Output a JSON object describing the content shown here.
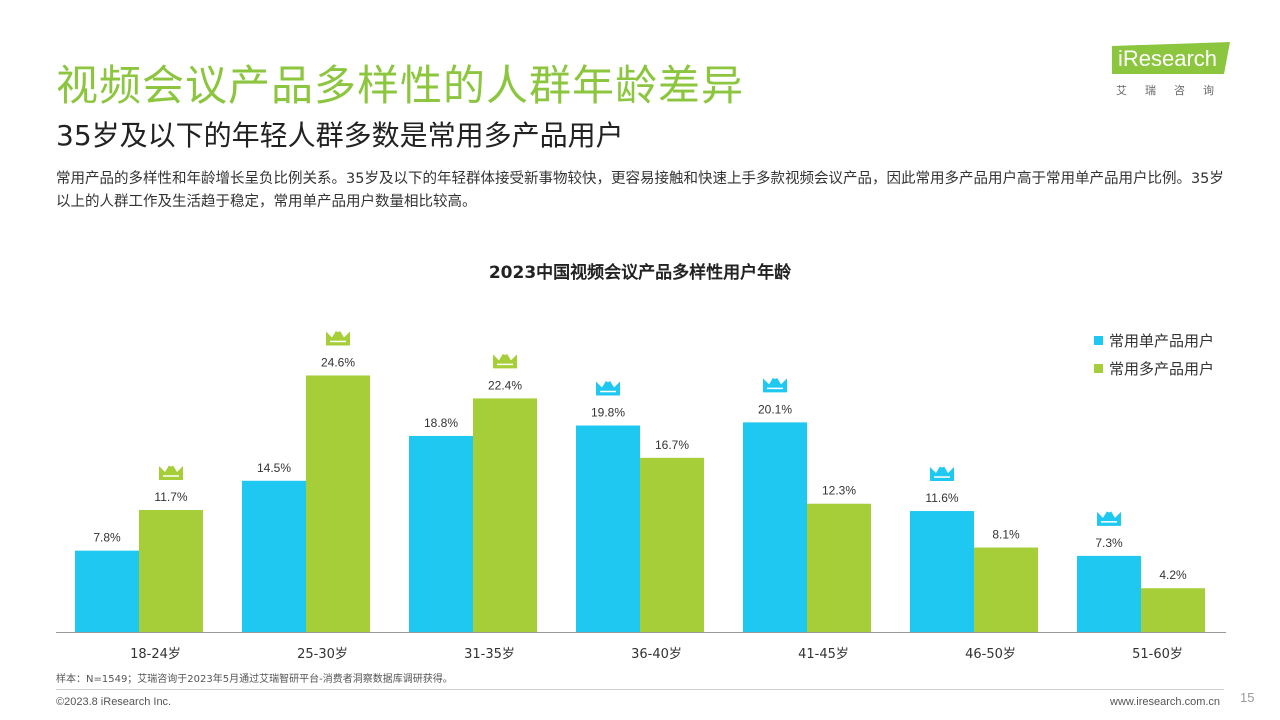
{
  "slide": {
    "title": "视频会议产品多样性的人群年龄差异",
    "subtitle": "35岁及以下的年轻人群多数是常用多产品用户",
    "description": "常用产品的多样性和年龄增长呈负比例关系。35岁及以下的年轻群体接受新事物较快，更容易接触和快速上手多款视频会议产品，因此常用多产品用户高于常用单产品用户比例。35岁以上的人群工作及生活趋于稳定，常用单产品用户数量相比较高。",
    "source": "样本：N=1549；艾瑞咨询于2023年5月通过艾瑞智研平台-消费者洞察数据库调研获得。",
    "copyright": "©2023.8 iResearch Inc.",
    "website": "www.iresearch.com.cn",
    "page_number": "15"
  },
  "logo": {
    "text": "iResearch",
    "subtext": "艾瑞咨询",
    "color": "#8cc63f"
  },
  "colors": {
    "single": "#1ec8f0",
    "multi": "#a6ce39",
    "title": "#8cc63f"
  },
  "chart_data": {
    "type": "bar",
    "title": "2023中国视频会议产品多样性用户年龄",
    "categories": [
      "18-24岁",
      "25-30岁",
      "31-35岁",
      "36-40岁",
      "41-45岁",
      "46-50岁",
      "51-60岁"
    ],
    "series": [
      {
        "name": "常用单产品用户",
        "values": [
          7.8,
          14.5,
          18.8,
          19.8,
          20.1,
          11.6,
          7.3
        ],
        "labels": [
          "7.8%",
          "14.5%",
          "18.8%",
          "19.8%",
          "20.1%",
          "11.6%",
          "7.3%"
        ],
        "color": "#1ec8f0"
      },
      {
        "name": "常用多产品用户",
        "values": [
          11.7,
          24.6,
          22.4,
          16.7,
          12.3,
          8.1,
          4.2
        ],
        "labels": [
          "11.7%",
          "24.6%",
          "22.4%",
          "16.7%",
          "12.3%",
          "8.1%",
          "4.2%"
        ],
        "color": "#a6ce39"
      }
    ],
    "crown_icon": "crown-icon",
    "ylim": [
      0,
      28
    ],
    "legend": "top-right",
    "grid": false
  }
}
